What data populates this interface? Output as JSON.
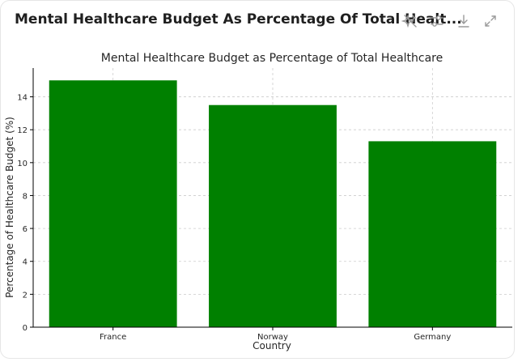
{
  "header": {
    "title": "Mental Healthcare Budget As Percentage Of Total Healt..."
  },
  "toolbar": {
    "icons": [
      "sparkle-off-icon",
      "sliders-icon",
      "download-icon",
      "expand-icon"
    ]
  },
  "colors": {
    "bar": "#008000",
    "grid": "#cccccc",
    "axis": "#000000",
    "icon": "#9a9a9a"
  },
  "chart_data": {
    "type": "bar",
    "title": "Mental Healthcare Budget as Percentage of Total Healthcare",
    "xlabel": "Country",
    "ylabel": "Percentage of Healthcare Budget (%)",
    "categories": [
      "France",
      "Norway",
      "Germany"
    ],
    "values": [
      15.0,
      13.5,
      11.3
    ],
    "ylim": [
      0,
      15.75
    ],
    "yticks": [
      0,
      2,
      4,
      6,
      8,
      10,
      12,
      14
    ],
    "grid": true
  }
}
